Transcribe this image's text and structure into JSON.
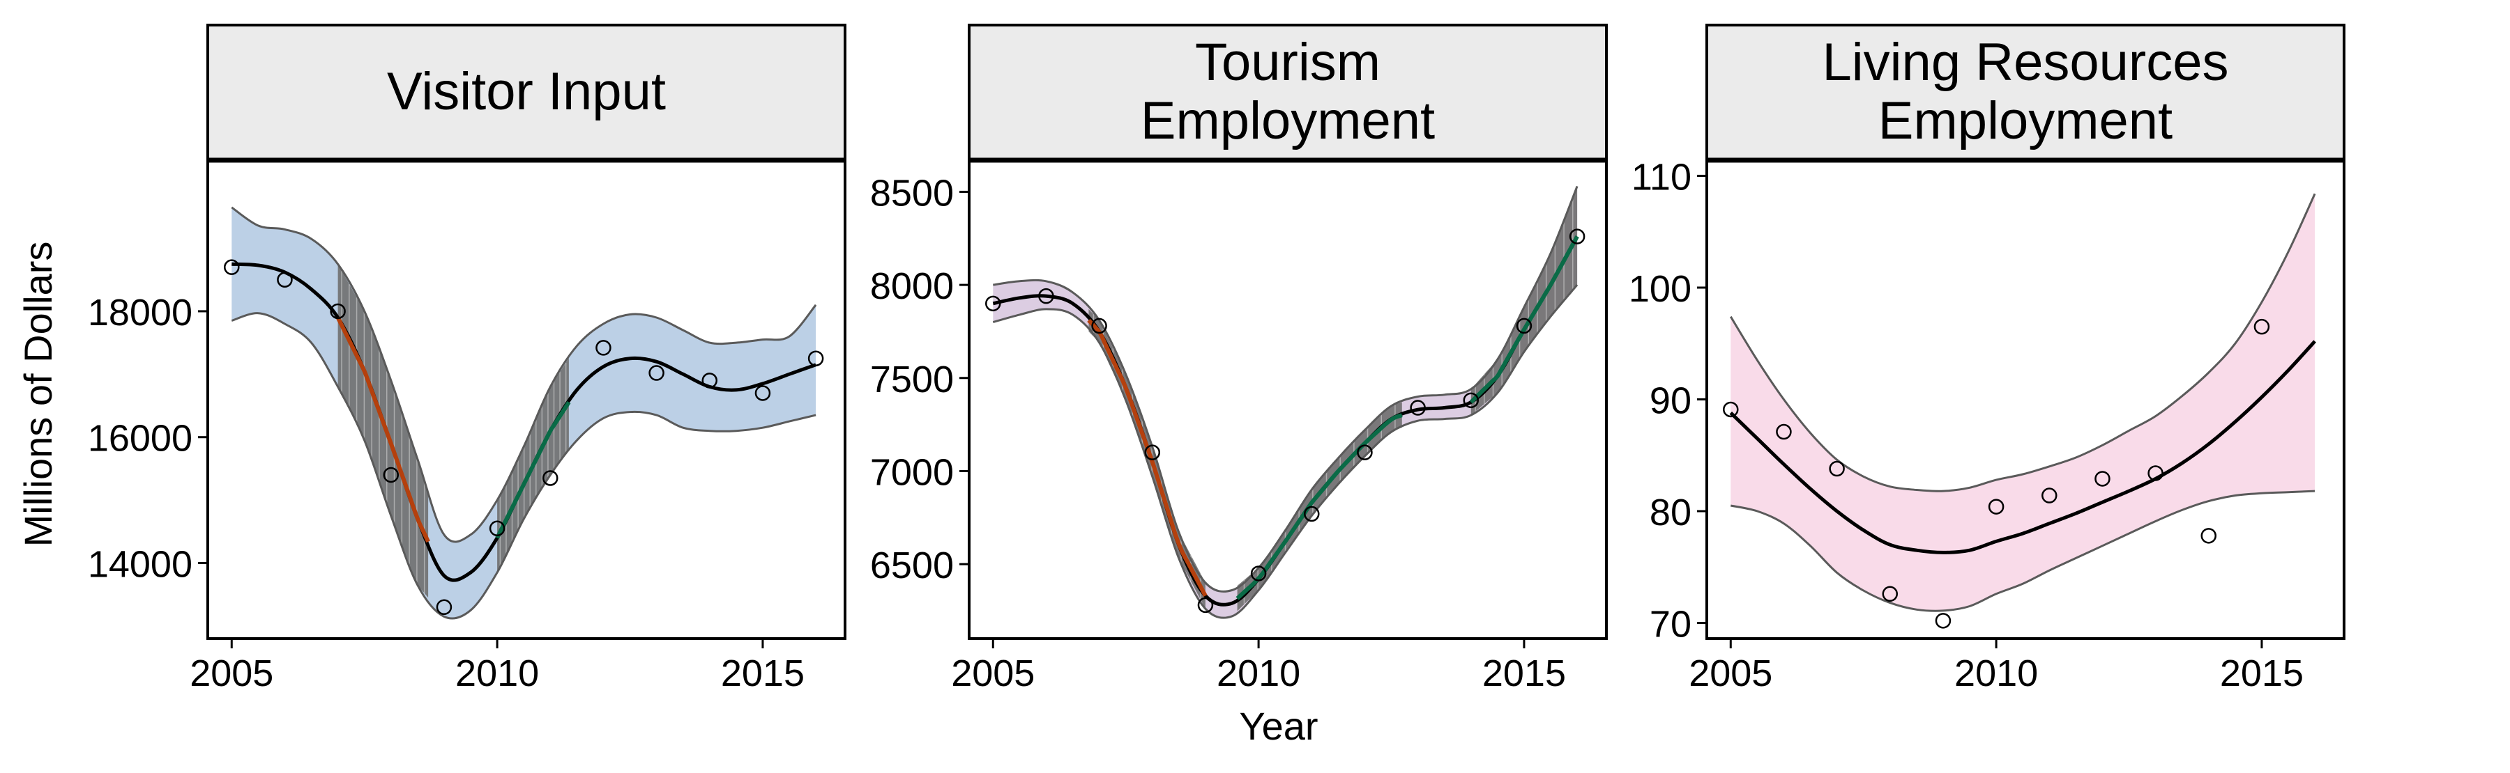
{
  "figure": {
    "ylabel": "Millions of Dollars",
    "xlabel": "Year"
  },
  "colors": {
    "strip_bg": "#ebebeb",
    "decline": "#b5400d",
    "increase": "#0a6b47",
    "smooth_line": "#000000",
    "band_edge": "#5a5a5a",
    "sig_band": "#6f6f6f",
    "points": "#000000"
  },
  "chart_data": [
    {
      "type": "line",
      "title": "Visitor Input",
      "title_lines": [
        "Visitor Input"
      ],
      "band_color": "#bcd0e6",
      "xlim": [
        2004.55,
        2016.55
      ],
      "ylim": [
        12800,
        20400
      ],
      "x_ticks": [
        2005,
        2010,
        2015
      ],
      "x_tick_labels": [
        "2005",
        "2010",
        "2015"
      ],
      "y_ticks": [
        14000,
        16000,
        18000
      ],
      "y_tick_labels": [
        "14000",
        "16000",
        "18000"
      ],
      "points": {
        "x": [
          2005,
          2006,
          2007,
          2008,
          2009,
          2010,
          2011,
          2012,
          2013,
          2014,
          2015,
          2016
        ],
        "y": [
          18700,
          18500,
          18000,
          15400,
          13300,
          14550,
          15350,
          17420,
          17020,
          16900,
          16700,
          17250
        ]
      },
      "smooth": {
        "x": [
          2005,
          2005.5,
          2006,
          2006.5,
          2007,
          2007.5,
          2008,
          2008.5,
          2009,
          2009.5,
          2010,
          2010.5,
          2011,
          2011.5,
          2012,
          2012.5,
          2013,
          2013.5,
          2014,
          2014.5,
          2015,
          2015.5,
          2016
        ],
        "y": [
          18750,
          18730,
          18620,
          18350,
          17900,
          17050,
          15900,
          14700,
          13800,
          13850,
          14400,
          15250,
          16100,
          16750,
          17120,
          17250,
          17200,
          17000,
          16800,
          16750,
          16850,
          17000,
          17150
        ],
        "lower": [
          17850,
          17970,
          17800,
          17500,
          16800,
          15950,
          14750,
          13650,
          13150,
          13250,
          13850,
          14700,
          15400,
          15950,
          16300,
          16400,
          16350,
          16150,
          16100,
          16100,
          16150,
          16250,
          16350
        ],
        "upper": [
          19650,
          19360,
          19300,
          19150,
          18750,
          18000,
          16900,
          15650,
          14450,
          14450,
          15000,
          15850,
          16800,
          17450,
          17800,
          17950,
          17900,
          17700,
          17500,
          17500,
          17550,
          17600,
          18100
        ]
      },
      "significant_ranges": [
        {
          "start": 2007.0,
          "end": 2008.7,
          "trend": "decrease"
        },
        {
          "start": 2010.0,
          "end": 2011.35,
          "trend": "increase"
        }
      ]
    },
    {
      "type": "line",
      "title": "Tourism Employment",
      "title_lines": [
        "Tourism",
        "Employment"
      ],
      "band_color": "#dccde2",
      "xlim": [
        2004.55,
        2016.55
      ],
      "ylim": [
        6100,
        8670
      ],
      "x_ticks": [
        2005,
        2010,
        2015
      ],
      "x_tick_labels": [
        "2005",
        "2010",
        "2015"
      ],
      "y_ticks": [
        6500,
        7000,
        7500,
        8000,
        8500
      ],
      "y_tick_labels": [
        "6500",
        "7000",
        "7500",
        "8000",
        "8500"
      ],
      "points": {
        "x": [
          2005,
          2006,
          2007,
          2008,
          2009,
          2010,
          2011,
          2012,
          2013,
          2014,
          2015,
          2016
        ],
        "y": [
          7900,
          7940,
          7780,
          7100,
          6280,
          6450,
          6770,
          7100,
          7340,
          7380,
          7780,
          8260
        ]
      },
      "smooth": {
        "x": [
          2005,
          2005.5,
          2006,
          2006.5,
          2007,
          2007.5,
          2008,
          2008.5,
          2009,
          2009.5,
          2010,
          2010.5,
          2011,
          2011.5,
          2012,
          2012.5,
          2013,
          2013.5,
          2014,
          2014.5,
          2015,
          2015.5,
          2016
        ],
        "y": [
          7900,
          7930,
          7940,
          7900,
          7750,
          7450,
          7050,
          6600,
          6330,
          6290,
          6420,
          6620,
          6830,
          7000,
          7150,
          7280,
          7330,
          7340,
          7370,
          7510,
          7760,
          8000,
          8260
        ],
        "lower": [
          7800,
          7840,
          7870,
          7840,
          7690,
          7380,
          6970,
          6530,
          6260,
          6220,
          6360,
          6560,
          6760,
          6930,
          7080,
          7210,
          7270,
          7280,
          7300,
          7420,
          7640,
          7830,
          8000
        ],
        "upper": [
          8000,
          8020,
          8020,
          7960,
          7810,
          7520,
          7130,
          6670,
          6400,
          6360,
          6480,
          6680,
          6900,
          7070,
          7220,
          7350,
          7400,
          7410,
          7440,
          7600,
          7880,
          8170,
          8530
        ]
      },
      "significant_ranges": [
        {
          "start": 2006.8,
          "end": 2009.0,
          "trend": "decrease"
        },
        {
          "start": 2009.6,
          "end": 2012.7,
          "trend": "increase"
        },
        {
          "start": 2014.0,
          "end": 2016.0,
          "trend": "increase"
        }
      ]
    },
    {
      "type": "line",
      "title": "Living Resources Employment",
      "title_lines": [
        "Living Resources",
        "Employment"
      ],
      "band_color": "#f9dbe9",
      "xlim": [
        2004.55,
        2016.55
      ],
      "ylim": [
        68.6,
        111.4
      ],
      "x_ticks": [
        2005,
        2010,
        2015
      ],
      "x_tick_labels": [
        "2005",
        "2010",
        "2015"
      ],
      "y_ticks": [
        70,
        80,
        90,
        100,
        110
      ],
      "y_tick_labels": [
        "70",
        "80",
        "90",
        "100",
        "110"
      ],
      "points": {
        "x": [
          2005,
          2006,
          2007,
          2008,
          2009,
          2010,
          2011,
          2012,
          2013,
          2014,
          2015
        ],
        "y": [
          89.1,
          87.1,
          83.8,
          72.6,
          70.2,
          80.4,
          81.4,
          82.9,
          83.4,
          77.8,
          96.5
        ]
      },
      "smooth": {
        "x": [
          2005,
          2005.5,
          2006,
          2006.5,
          2007,
          2007.5,
          2008,
          2008.5,
          2009,
          2009.5,
          2010,
          2010.5,
          2011,
          2011.5,
          2012,
          2012.5,
          2013,
          2013.5,
          2014,
          2014.5,
          2015,
          2015.5,
          2016
        ],
        "y": [
          88.8,
          86.5,
          84.2,
          82.0,
          80.0,
          78.3,
          77.0,
          76.5,
          76.3,
          76.5,
          77.3,
          78.0,
          78.9,
          79.8,
          80.8,
          81.8,
          82.9,
          84.3,
          86.0,
          88.0,
          90.2,
          92.6,
          95.2
        ],
        "lower": [
          80.5,
          80.0,
          78.9,
          76.9,
          74.5,
          72.9,
          71.8,
          71.2,
          71.1,
          71.5,
          72.6,
          73.5,
          74.7,
          75.8,
          76.9,
          78.0,
          79.1,
          80.1,
          80.9,
          81.4,
          81.6,
          81.7,
          81.8
        ],
        "upper": [
          97.4,
          93.5,
          90.0,
          87.0,
          84.6,
          83.1,
          82.2,
          81.9,
          81.8,
          82.1,
          82.8,
          83.3,
          84.0,
          84.8,
          85.9,
          87.2,
          88.5,
          90.3,
          92.4,
          95.0,
          98.7,
          103.2,
          108.4
        ]
      },
      "significant_ranges": []
    }
  ]
}
